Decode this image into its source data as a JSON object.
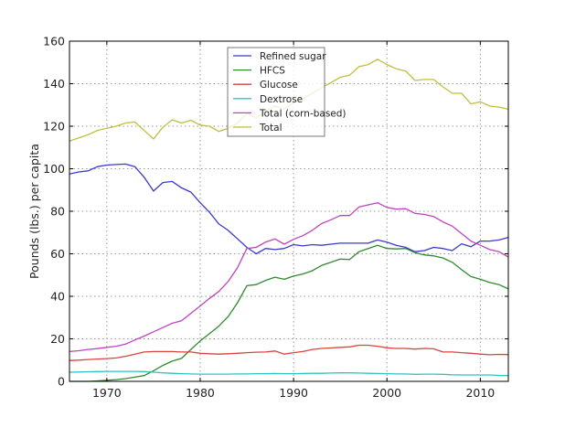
{
  "chart_data": {
    "type": "line",
    "title": "",
    "xlabel": "",
    "ylabel": "Pounds (lbs.) per capita",
    "xlim": [
      1966,
      2013
    ],
    "ylim": [
      0,
      160
    ],
    "xticks": [
      1970,
      1980,
      1990,
      2000,
      2010
    ],
    "yticks": [
      0,
      20,
      40,
      60,
      80,
      100,
      120,
      140,
      160
    ],
    "grid": true,
    "legend_position": "top-center",
    "x": [
      1966,
      1967,
      1968,
      1969,
      1970,
      1971,
      1972,
      1973,
      1974,
      1975,
      1976,
      1977,
      1978,
      1979,
      1980,
      1981,
      1982,
      1983,
      1984,
      1985,
      1986,
      1987,
      1988,
      1989,
      1990,
      1991,
      1992,
      1993,
      1994,
      1995,
      1996,
      1997,
      1998,
      1999,
      2000,
      2001,
      2002,
      2003,
      2004,
      2005,
      2006,
      2007,
      2008,
      2009,
      2010,
      2011,
      2012,
      2013
    ],
    "series": [
      {
        "name": "Refined sugar",
        "color": "#3a3acc",
        "values": [
          97.5,
          98.5,
          99,
          101,
          101.7,
          102,
          102.2,
          101,
          96,
          89.5,
          93.5,
          94,
          91,
          89,
          84,
          79.5,
          74,
          71,
          67,
          63,
          60,
          62.5,
          62,
          62.5,
          64.3,
          63.7,
          64.3,
          64,
          64.5,
          65,
          65,
          65,
          65,
          66.5,
          65.5,
          64,
          63,
          61,
          61.5,
          63,
          62.5,
          61.5,
          64.7,
          63.3,
          66,
          66,
          66.5,
          67.7
        ]
      },
      {
        "name": "HFCS",
        "color": "#2e8b2e",
        "values": [
          0,
          0,
          0,
          0.2,
          0.5,
          0.8,
          1.3,
          2,
          2.7,
          5,
          7.5,
          9.5,
          10.8,
          15,
          19,
          22.5,
          26,
          30.5,
          37,
          45,
          45.5,
          47.5,
          49,
          48,
          49.5,
          50.5,
          52,
          54.5,
          56,
          57.5,
          57.3,
          61,
          62.5,
          64,
          62.5,
          62.3,
          62.5,
          60.5,
          59.5,
          59,
          58,
          56,
          52.5,
          49.3,
          48,
          46.5,
          45.5,
          43.5
        ]
      },
      {
        "name": "Glucose",
        "color": "#d8443f",
        "values": [
          9.8,
          10,
          10.3,
          10.5,
          10.7,
          11,
          11.8,
          12.8,
          13.8,
          14,
          14,
          14,
          13.8,
          13.8,
          13.2,
          13,
          12.8,
          13,
          13.2,
          13.5,
          13.7,
          13.8,
          14.3,
          12.8,
          13.5,
          14,
          15,
          15.5,
          15.7,
          16,
          16.2,
          17,
          17,
          16.5,
          15.8,
          15.5,
          15.5,
          15.2,
          15.5,
          15.3,
          13.8,
          13.8,
          13.5,
          13.2,
          12.8,
          12.5,
          12.7,
          12.6
        ]
      },
      {
        "name": "Dextrose",
        "color": "#33c2c2",
        "values": [
          4.3,
          4.4,
          4.5,
          4.6,
          4.7,
          4.7,
          4.7,
          4.7,
          4.6,
          4.3,
          4.0,
          3.8,
          3.6,
          3.5,
          3.4,
          3.4,
          3.4,
          3.4,
          3.5,
          3.5,
          3.6,
          3.6,
          3.7,
          3.6,
          3.6,
          3.7,
          3.8,
          3.8,
          3.9,
          4.0,
          4.0,
          3.9,
          3.8,
          3.7,
          3.6,
          3.5,
          3.5,
          3.3,
          3.4,
          3.4,
          3.3,
          3.1,
          3.0,
          3.0,
          3.0,
          3.0,
          2.8,
          2.7
        ]
      },
      {
        "name": "Total (corn-based)",
        "color": "#bf44bf",
        "values": [
          14,
          14.4,
          15,
          15.4,
          16,
          16.5,
          17.5,
          19.5,
          21.3,
          23.3,
          25.3,
          27.3,
          28.5,
          32,
          35.5,
          39,
          42.3,
          47,
          53.5,
          62.5,
          63,
          65.5,
          67,
          64.5,
          66.8,
          68.5,
          71,
          74.2,
          76,
          78,
          78,
          82,
          83,
          84,
          81.8,
          81,
          81.2,
          79,
          78.5,
          77.5,
          75,
          73,
          69.5,
          66,
          64,
          62,
          61,
          58.5
        ]
      },
      {
        "name": "Total",
        "color": "#bfbf40",
        "values": [
          113,
          114.5,
          116,
          118,
          119,
          120,
          121.5,
          122,
          118,
          114,
          119.5,
          123,
          121.5,
          122.8,
          120.5,
          120,
          117.5,
          119,
          121.5,
          126,
          124,
          127,
          129.5,
          128,
          131,
          133,
          135.5,
          138,
          140.5,
          143,
          144,
          148,
          149,
          151.5,
          149,
          147,
          146,
          141.5,
          142,
          142,
          138.5,
          135.5,
          135.5,
          130.5,
          131.5,
          129.5,
          129,
          128
        ]
      }
    ]
  }
}
